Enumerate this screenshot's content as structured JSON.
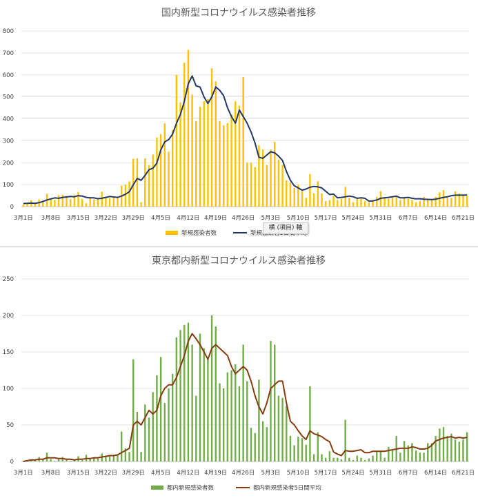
{
  "tooltip": "横 (項目) 軸",
  "chart_data": [
    {
      "type": "bar+line",
      "title": "国内新型コロナウイルス感染者推移",
      "ylim": [
        0,
        800
      ],
      "yticks": [
        0,
        100,
        200,
        300,
        400,
        500,
        600,
        700,
        800
      ],
      "x_tick_labels": [
        "3月1日",
        "3月8日",
        "3月15日",
        "3月22日",
        "3月29日",
        "4月5日",
        "4月12日",
        "4月19日",
        "4月26日",
        "5月3日",
        "5月10日",
        "5月17日",
        "5月24日",
        "5月31日",
        "6月7日",
        "6月14日",
        "6月21日"
      ],
      "grid": true,
      "legend_position": "bottom",
      "bar_color": "#ffc000",
      "line_color": "#203864",
      "series": [
        {
          "name": "新規感染者数",
          "kind": "bar",
          "values": [
            9,
            15,
            30,
            15,
            33,
            26,
            58,
            32,
            32,
            52,
            54,
            41,
            34,
            52,
            66,
            35,
            15,
            39,
            33,
            38,
            68,
            44,
            39,
            40,
            45,
            95,
            100,
            115,
            218,
            220,
            20,
            220,
            190,
            237,
            315,
            330,
            380,
            250,
            349,
            600,
            475,
            655,
            714,
            510,
            390,
            455,
            480,
            490,
            630,
            570,
            390,
            370,
            380,
            420,
            480,
            460,
            590,
            200,
            200,
            180,
            280,
            260,
            190,
            260,
            295,
            215,
            190,
            120,
            110,
            85,
            100,
            70,
            40,
            148,
            60,
            115,
            60,
            25,
            30,
            50,
            30,
            35,
            90,
            40,
            20,
            35,
            35,
            25,
            20,
            30,
            45,
            70,
            40,
            35,
            40,
            50,
            30,
            45,
            35,
            30,
            20,
            25,
            45,
            35,
            35,
            45,
            65,
            75,
            40,
            40,
            70,
            60,
            50,
            50
          ]
        },
        {
          "name": "新規感染者5日間平均",
          "kind": "line",
          "values": [
            14,
            15,
            16,
            15,
            18,
            24,
            30,
            35,
            40,
            38,
            42,
            44,
            46,
            45,
            50,
            48,
            42,
            40,
            40,
            36,
            38,
            42,
            46,
            44,
            42,
            48,
            56,
            68,
            100,
            128,
            120,
            142,
            168,
            175,
            198,
            258,
            295,
            305,
            330,
            380,
            420,
            480,
            560,
            595,
            550,
            545,
            500,
            470,
            500,
            545,
            530,
            505,
            450,
            410,
            380,
            440,
            410,
            380,
            340,
            290,
            225,
            220,
            235,
            250,
            245,
            230,
            210,
            160,
            120,
            95,
            85,
            75,
            80,
            88,
            92,
            90,
            85,
            70,
            55,
            57,
            40,
            42,
            45,
            48,
            45,
            38,
            40,
            38,
            25,
            26,
            30,
            38,
            40,
            42,
            45,
            48,
            40,
            40,
            42,
            38,
            35,
            36,
            34,
            33,
            32,
            34,
            38,
            42,
            45,
            50,
            52,
            52,
            52,
            53
          ]
        }
      ]
    },
    {
      "type": "bar+line",
      "title": "東京都内新型コロナウイルス感染者推移",
      "ylim": [
        0,
        250
      ],
      "yticks": [
        0,
        50,
        100,
        150,
        200,
        250
      ],
      "x_tick_labels": [
        "3月1日",
        "3月8日",
        "3月15日",
        "3月22日",
        "3月29日",
        "4月5日",
        "4月12日",
        "4月19日",
        "4月26日",
        "5月3日",
        "5月10日",
        "5月17日",
        "5月24日",
        "5月31日",
        "6月7日",
        "6月14日",
        "6月21日"
      ],
      "grid": true,
      "legend_position": "bottom",
      "bar_color": "#70ad47",
      "line_color": "#843c0c",
      "series": [
        {
          "name": "都内新規感染者数",
          "kind": "bar",
          "values": [
            1,
            1,
            3,
            2,
            6,
            3,
            12,
            3,
            1,
            3,
            6,
            3,
            1,
            2,
            7,
            2,
            9,
            3,
            5,
            4,
            11,
            8,
            7,
            9,
            10,
            41,
            18,
            13,
            140,
            68,
            13,
            78,
            60,
            95,
            118,
            143,
            80,
            100,
            120,
            170,
            180,
            187,
            190,
            160,
            90,
            175,
            155,
            140,
            200,
            185,
            107,
            100,
            122,
            125,
            133,
            103,
            160,
            110,
            46,
            39,
            112,
            55,
            47,
            165,
            160,
            90,
            87,
            76,
            35,
            22,
            34,
            32,
            23,
            103,
            10,
            40,
            10,
            5,
            14,
            5,
            5,
            3,
            57,
            5,
            2,
            8,
            5,
            2,
            4,
            8,
            13,
            14,
            5,
            20,
            15,
            35,
            12,
            28,
            22,
            25,
            15,
            12,
            12,
            25,
            25,
            35,
            45,
            47,
            35,
            38,
            30,
            27,
            30,
            40
          ]
        },
        {
          "name": "都内新規感染者5日間平均",
          "kind": "line",
          "values": [
            0,
            1,
            2,
            2,
            3,
            3,
            5,
            5,
            5,
            4,
            4,
            3,
            3,
            2,
            3,
            3,
            4,
            4,
            5,
            5,
            6,
            7,
            8,
            8,
            9,
            12,
            15,
            18,
            50,
            55,
            50,
            60,
            70,
            65,
            70,
            90,
            100,
            105,
            105,
            115,
            130,
            145,
            165,
            175,
            168,
            160,
            150,
            140,
            155,
            160,
            155,
            150,
            145,
            130,
            120,
            125,
            130,
            125,
            110,
            90,
            75,
            65,
            80,
            100,
            105,
            110,
            110,
            80,
            55,
            50,
            42,
            35,
            30,
            42,
            38,
            36,
            34,
            30,
            27,
            13,
            10,
            8,
            15,
            14,
            14,
            15,
            16,
            12,
            12,
            14,
            14,
            14,
            14,
            15,
            16,
            17,
            18,
            18,
            18,
            20,
            19,
            17,
            17,
            18,
            22,
            28,
            30,
            32,
            33,
            34,
            32,
            33,
            32,
            33
          ]
        }
      ]
    }
  ]
}
